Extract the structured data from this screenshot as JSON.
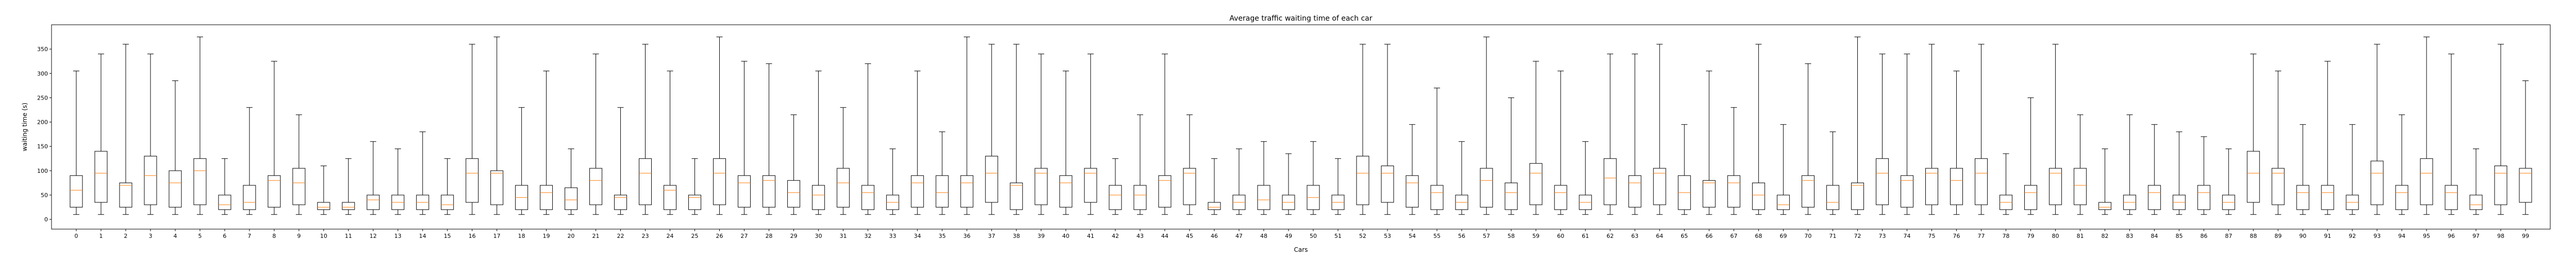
{
  "chart_data": {
    "type": "boxplot",
    "title": "Average traffic waiting time of each car",
    "xlabel": "Cars",
    "ylabel": "waiting time (s)",
    "ylim": [
      -20,
      400
    ],
    "yticks": [
      0,
      50,
      100,
      150,
      200,
      250,
      300,
      350
    ],
    "grid": false,
    "legend": "none",
    "colors": {
      "box": "#000000",
      "median": "#ff7f0e",
      "axis": "#000000"
    },
    "categories": [
      "0",
      "1",
      "2",
      "3",
      "4",
      "5",
      "6",
      "7",
      "8",
      "9",
      "10",
      "11",
      "12",
      "13",
      "14",
      "15",
      "16",
      "17",
      "18",
      "19",
      "20",
      "21",
      "22",
      "23",
      "24",
      "25",
      "26",
      "27",
      "28",
      "29",
      "30",
      "31",
      "32",
      "33",
      "34",
      "35",
      "36",
      "37",
      "38",
      "39",
      "40",
      "41",
      "42",
      "43",
      "44",
      "45",
      "46",
      "47",
      "48",
      "49",
      "50",
      "51",
      "52",
      "53",
      "54",
      "55",
      "56",
      "57",
      "58",
      "59",
      "60",
      "61",
      "62",
      "63",
      "64",
      "65",
      "66",
      "67",
      "68",
      "69",
      "70",
      "71",
      "72",
      "73",
      "74",
      "75",
      "76",
      "77",
      "78",
      "79",
      "80",
      "81",
      "82",
      "83",
      "84",
      "85",
      "86",
      "87",
      "88",
      "89",
      "90",
      "91",
      "92",
      "93",
      "94",
      "95",
      "96",
      "97",
      "98",
      "99"
    ],
    "boxes": [
      {
        "whislo": 10,
        "q1": 25,
        "med": 60,
        "q3": 90,
        "whishi": 305
      },
      {
        "whislo": 10,
        "q1": 35,
        "med": 95,
        "q3": 140,
        "whishi": 340
      },
      {
        "whislo": 10,
        "q1": 25,
        "med": 70,
        "q3": 75,
        "whishi": 360
      },
      {
        "whislo": 10,
        "q1": 30,
        "med": 90,
        "q3": 130,
        "whishi": 340
      },
      {
        "whislo": 10,
        "q1": 25,
        "med": 75,
        "q3": 100,
        "whishi": 285
      },
      {
        "whislo": 10,
        "q1": 30,
        "med": 100,
        "q3": 125,
        "whishi": 375
      },
      {
        "whislo": 10,
        "q1": 20,
        "med": 30,
        "q3": 50,
        "whishi": 125
      },
      {
        "whislo": 10,
        "q1": 20,
        "med": 35,
        "q3": 70,
        "whishi": 230
      },
      {
        "whislo": 10,
        "q1": 25,
        "med": 80,
        "q3": 90,
        "whishi": 325
      },
      {
        "whislo": 10,
        "q1": 30,
        "med": 75,
        "q3": 105,
        "whishi": 215
      },
      {
        "whislo": 10,
        "q1": 20,
        "med": 25,
        "q3": 35,
        "whishi": 110
      },
      {
        "whislo": 10,
        "q1": 20,
        "med": 25,
        "q3": 35,
        "whishi": 125
      },
      {
        "whislo": 10,
        "q1": 20,
        "med": 40,
        "q3": 50,
        "whishi": 160
      },
      {
        "whislo": 10,
        "q1": 20,
        "med": 35,
        "q3": 50,
        "whishi": 145
      },
      {
        "whislo": 10,
        "q1": 20,
        "med": 35,
        "q3": 50,
        "whishi": 180
      },
      {
        "whislo": 10,
        "q1": 20,
        "med": 30,
        "q3": 50,
        "whishi": 125
      },
      {
        "whislo": 10,
        "q1": 35,
        "med": 95,
        "q3": 125,
        "whishi": 360
      },
      {
        "whislo": 10,
        "q1": 30,
        "med": 95,
        "q3": 100,
        "whishi": 375
      },
      {
        "whislo": 10,
        "q1": 20,
        "med": 45,
        "q3": 70,
        "whishi": 230
      },
      {
        "whislo": 10,
        "q1": 20,
        "med": 55,
        "q3": 70,
        "whishi": 305
      },
      {
        "whislo": 10,
        "q1": 20,
        "med": 40,
        "q3": 65,
        "whishi": 145
      },
      {
        "whislo": 10,
        "q1": 30,
        "med": 80,
        "q3": 105,
        "whishi": 340
      },
      {
        "whislo": 10,
        "q1": 20,
        "med": 45,
        "q3": 50,
        "whishi": 230
      },
      {
        "whislo": 10,
        "q1": 30,
        "med": 95,
        "q3": 125,
        "whishi": 360
      },
      {
        "whislo": 10,
        "q1": 20,
        "med": 60,
        "q3": 70,
        "whishi": 305
      },
      {
        "whislo": 10,
        "q1": 20,
        "med": 45,
        "q3": 50,
        "whishi": 125
      },
      {
        "whislo": 10,
        "q1": 30,
        "med": 95,
        "q3": 125,
        "whishi": 375
      },
      {
        "whislo": 10,
        "q1": 25,
        "med": 75,
        "q3": 90,
        "whishi": 325
      },
      {
        "whislo": 10,
        "q1": 25,
        "med": 80,
        "q3": 90,
        "whishi": 320
      },
      {
        "whislo": 10,
        "q1": 25,
        "med": 55,
        "q3": 80,
        "whishi": 215
      },
      {
        "whislo": 10,
        "q1": 20,
        "med": 50,
        "q3": 70,
        "whishi": 305
      },
      {
        "whislo": 10,
        "q1": 25,
        "med": 75,
        "q3": 105,
        "whishi": 230
      },
      {
        "whislo": 10,
        "q1": 20,
        "med": 55,
        "q3": 70,
        "whishi": 320
      },
      {
        "whislo": 10,
        "q1": 20,
        "med": 35,
        "q3": 50,
        "whishi": 145
      },
      {
        "whislo": 10,
        "q1": 25,
        "med": 75,
        "q3": 90,
        "whishi": 305
      },
      {
        "whislo": 10,
        "q1": 25,
        "med": 55,
        "q3": 90,
        "whishi": 180
      },
      {
        "whislo": 10,
        "q1": 25,
        "med": 75,
        "q3": 90,
        "whishi": 375
      },
      {
        "whislo": 10,
        "q1": 35,
        "med": 95,
        "q3": 130,
        "whishi": 360
      },
      {
        "whislo": 10,
        "q1": 20,
        "med": 70,
        "q3": 75,
        "whishi": 360
      },
      {
        "whislo": 10,
        "q1": 30,
        "med": 95,
        "q3": 105,
        "whishi": 340
      },
      {
        "whislo": 10,
        "q1": 25,
        "med": 75,
        "q3": 90,
        "whishi": 305
      },
      {
        "whislo": 10,
        "q1": 35,
        "med": 95,
        "q3": 105,
        "whishi": 340
      },
      {
        "whislo": 10,
        "q1": 20,
        "med": 50,
        "q3": 70,
        "whishi": 125
      },
      {
        "whislo": 10,
        "q1": 20,
        "med": 50,
        "q3": 70,
        "whishi": 215
      },
      {
        "whislo": 10,
        "q1": 25,
        "med": 80,
        "q3": 90,
        "whishi": 340
      },
      {
        "whislo": 10,
        "q1": 30,
        "med": 95,
        "q3": 105,
        "whishi": 215
      },
      {
        "whislo": 10,
        "q1": 20,
        "med": 25,
        "q3": 35,
        "whishi": 125
      },
      {
        "whislo": 10,
        "q1": 20,
        "med": 35,
        "q3": 50,
        "whishi": 145
      },
      {
        "whislo": 10,
        "q1": 20,
        "med": 40,
        "q3": 70,
        "whishi": 160
      },
      {
        "whislo": 10,
        "q1": 20,
        "med": 35,
        "q3": 50,
        "whishi": 135
      },
      {
        "whislo": 10,
        "q1": 20,
        "med": 45,
        "q3": 70,
        "whishi": 160
      },
      {
        "whislo": 10,
        "q1": 20,
        "med": 35,
        "q3": 50,
        "whishi": 125
      },
      {
        "whislo": 10,
        "q1": 30,
        "med": 95,
        "q3": 130,
        "whishi": 360
      },
      {
        "whislo": 10,
        "q1": 35,
        "med": 95,
        "q3": 110,
        "whishi": 360
      },
      {
        "whislo": 10,
        "q1": 25,
        "med": 75,
        "q3": 90,
        "whishi": 195
      },
      {
        "whislo": 10,
        "q1": 20,
        "med": 55,
        "q3": 70,
        "whishi": 270
      },
      {
        "whislo": 10,
        "q1": 20,
        "med": 35,
        "q3": 50,
        "whishi": 160
      },
      {
        "whislo": 10,
        "q1": 25,
        "med": 80,
        "q3": 105,
        "whishi": 375
      },
      {
        "whislo": 10,
        "q1": 20,
        "med": 55,
        "q3": 75,
        "whishi": 250
      },
      {
        "whislo": 10,
        "q1": 30,
        "med": 95,
        "q3": 115,
        "whishi": 325
      },
      {
        "whislo": 10,
        "q1": 20,
        "med": 55,
        "q3": 70,
        "whishi": 305
      },
      {
        "whislo": 10,
        "q1": 20,
        "med": 35,
        "q3": 50,
        "whishi": 160
      },
      {
        "whislo": 10,
        "q1": 30,
        "med": 85,
        "q3": 125,
        "whishi": 340
      },
      {
        "whislo": 10,
        "q1": 25,
        "med": 75,
        "q3": 90,
        "whishi": 340
      },
      {
        "whislo": 10,
        "q1": 30,
        "med": 95,
        "q3": 105,
        "whishi": 360
      },
      {
        "whislo": 10,
        "q1": 20,
        "med": 55,
        "q3": 90,
        "whishi": 195
      },
      {
        "whislo": 10,
        "q1": 25,
        "med": 75,
        "q3": 80,
        "whishi": 305
      },
      {
        "whislo": 10,
        "q1": 25,
        "med": 75,
        "q3": 90,
        "whishi": 230
      },
      {
        "whislo": 10,
        "q1": 20,
        "med": 50,
        "q3": 75,
        "whishi": 360
      },
      {
        "whislo": 10,
        "q1": 20,
        "med": 30,
        "q3": 50,
        "whishi": 195
      },
      {
        "whislo": 10,
        "q1": 25,
        "med": 80,
        "q3": 90,
        "whishi": 320
      },
      {
        "whislo": 10,
        "q1": 20,
        "med": 35,
        "q3": 70,
        "whishi": 180
      },
      {
        "whislo": 10,
        "q1": 20,
        "med": 70,
        "q3": 75,
        "whishi": 375
      },
      {
        "whislo": 10,
        "q1": 30,
        "med": 95,
        "q3": 125,
        "whishi": 340
      },
      {
        "whislo": 10,
        "q1": 25,
        "med": 80,
        "q3": 90,
        "whishi": 340
      },
      {
        "whislo": 10,
        "q1": 30,
        "med": 95,
        "q3": 105,
        "whishi": 360
      },
      {
        "whislo": 10,
        "q1": 30,
        "med": 80,
        "q3": 105,
        "whishi": 305
      },
      {
        "whislo": 10,
        "q1": 30,
        "med": 95,
        "q3": 125,
        "whishi": 360
      },
      {
        "whislo": 10,
        "q1": 20,
        "med": 35,
        "q3": 50,
        "whishi": 135
      },
      {
        "whislo": 10,
        "q1": 20,
        "med": 55,
        "q3": 70,
        "whishi": 250
      },
      {
        "whislo": 10,
        "q1": 30,
        "med": 95,
        "q3": 105,
        "whishi": 360
      },
      {
        "whislo": 10,
        "q1": 30,
        "med": 70,
        "q3": 105,
        "whishi": 215
      },
      {
        "whislo": 10,
        "q1": 20,
        "med": 25,
        "q3": 35,
        "whishi": 145
      },
      {
        "whislo": 10,
        "q1": 20,
        "med": 35,
        "q3": 50,
        "whishi": 215
      },
      {
        "whislo": 10,
        "q1": 20,
        "med": 55,
        "q3": 70,
        "whishi": 195
      },
      {
        "whislo": 10,
        "q1": 20,
        "med": 35,
        "q3": 50,
        "whishi": 180
      },
      {
        "whislo": 10,
        "q1": 20,
        "med": 55,
        "q3": 70,
        "whishi": 170
      },
      {
        "whislo": 10,
        "q1": 20,
        "med": 35,
        "q3": 50,
        "whishi": 145
      },
      {
        "whislo": 10,
        "q1": 35,
        "med": 95,
        "q3": 140,
        "whishi": 340
      },
      {
        "whislo": 10,
        "q1": 30,
        "med": 95,
        "q3": 105,
        "whishi": 305
      },
      {
        "whislo": 10,
        "q1": 20,
        "med": 55,
        "q3": 70,
        "whishi": 195
      },
      {
        "whislo": 10,
        "q1": 20,
        "med": 55,
        "q3": 70,
        "whishi": 325
      },
      {
        "whislo": 10,
        "q1": 20,
        "med": 35,
        "q3": 50,
        "whishi": 195
      },
      {
        "whislo": 10,
        "q1": 30,
        "med": 95,
        "q3": 120,
        "whishi": 360
      },
      {
        "whislo": 10,
        "q1": 20,
        "med": 55,
        "q3": 70,
        "whishi": 215
      },
      {
        "whislo": 10,
        "q1": 30,
        "med": 95,
        "q3": 125,
        "whishi": 375
      },
      {
        "whislo": 10,
        "q1": 20,
        "med": 55,
        "q3": 70,
        "whishi": 340
      },
      {
        "whislo": 10,
        "q1": 20,
        "med": 30,
        "q3": 50,
        "whishi": 145
      },
      {
        "whislo": 10,
        "q1": 30,
        "med": 95,
        "q3": 110,
        "whishi": 360
      },
      {
        "whislo": 10,
        "q1": 35,
        "med": 95,
        "q3": 105,
        "whishi": 285
      }
    ]
  }
}
